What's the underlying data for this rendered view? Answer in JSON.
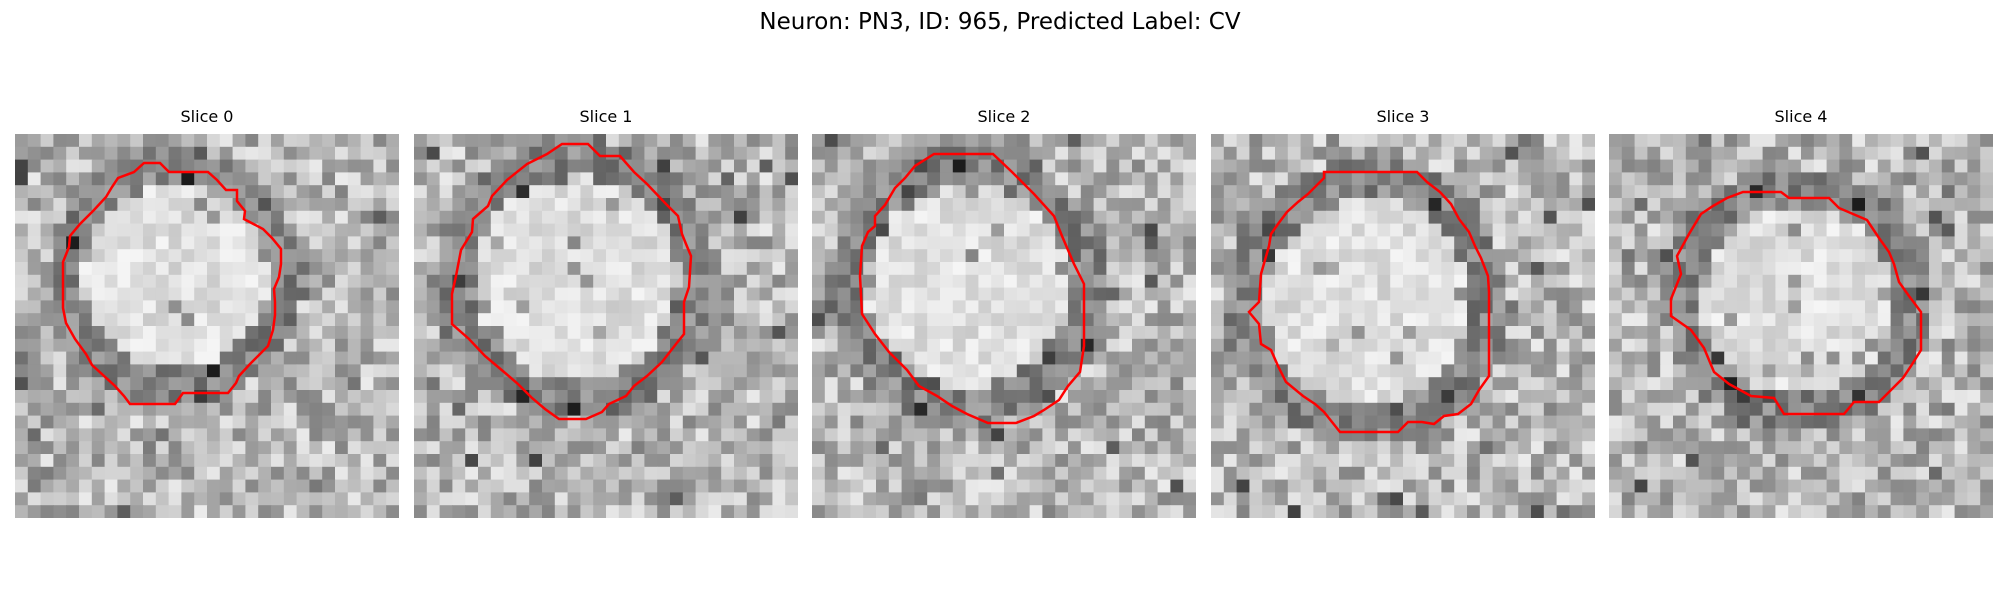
{
  "figure": {
    "title": "Neuron: PN3, ID: 965, Predicted Label: CV",
    "contour_color": "#ff0000",
    "colormap": "gray",
    "panels": [
      {
        "title": "Slice 0",
        "seed": 11
      },
      {
        "title": "Slice 1",
        "seed": 23
      },
      {
        "title": "Slice 2",
        "seed": 37
      },
      {
        "title": "Slice 3",
        "seed": 41
      },
      {
        "title": "Slice 4",
        "seed": 59
      }
    ]
  }
}
